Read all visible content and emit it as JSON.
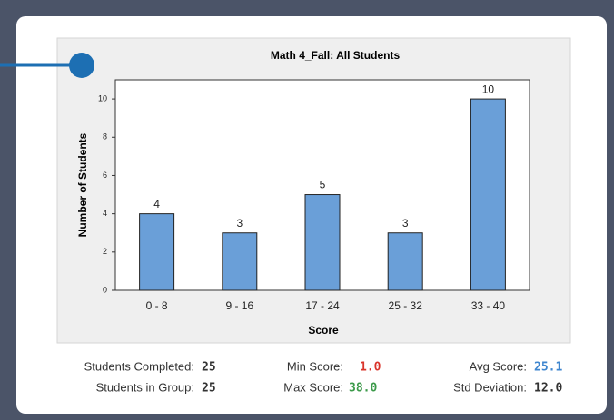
{
  "chart_data": {
    "type": "bar",
    "title": "Math 4_Fall: All Students",
    "xlabel": "Score",
    "ylabel": "Number of Students",
    "categories": [
      "0 - 8",
      "9 - 16",
      "17 - 24",
      "25 - 32",
      "33 - 40"
    ],
    "values": [
      4,
      3,
      5,
      3,
      10
    ],
    "color": "#6a9fd8",
    "ylim": [
      0,
      11
    ],
    "yticks": [
      0,
      2,
      4,
      6,
      8,
      10
    ],
    "grid": false
  },
  "stats": {
    "completed": {
      "label": "Students Completed:",
      "value": "25"
    },
    "group": {
      "label": "Students in Group:",
      "value": "25"
    },
    "min": {
      "label": "Min Score:",
      "value": "1.0"
    },
    "max": {
      "label": "Max Score:",
      "value": "38.0"
    },
    "avg": {
      "label": "Avg Score:",
      "value": "25.1"
    },
    "std": {
      "label": "Std Deviation:",
      "value": "12.0"
    }
  }
}
